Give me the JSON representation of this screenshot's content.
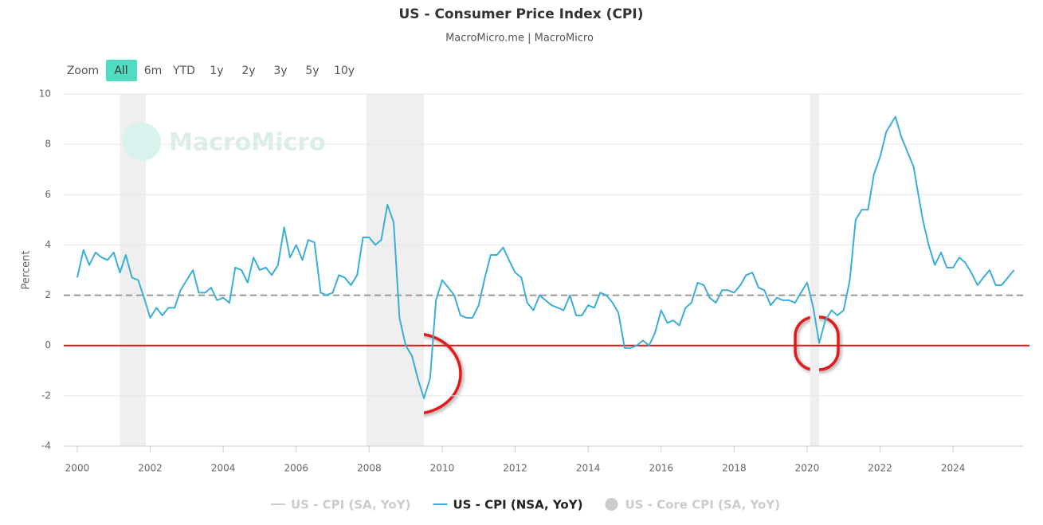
{
  "chart_data": {
    "type": "line",
    "title": "US - Consumer Price Index (CPI)",
    "subtitle": "MacroMicro.me | MacroMicro",
    "watermark": "MacroMicro",
    "y_label": "Percent",
    "range_selector": {
      "label": "Zoom",
      "buttons": [
        "All",
        "6m",
        "YTD",
        "1y",
        "2y",
        "3y",
        "5y",
        "10y"
      ],
      "selected": 0
    },
    "xlim": [
      1999.63,
      2025.94
    ],
    "xticks": [
      2000,
      2002,
      2004,
      2006,
      2008,
      2010,
      2012,
      2014,
      2016,
      2018,
      2020,
      2022,
      2024
    ],
    "ylim": [
      -4,
      10
    ],
    "yticks": [
      -4,
      -2,
      0,
      2,
      4,
      6,
      8,
      10
    ],
    "grid": true,
    "shaded_periods": [
      [
        2001.17,
        2001.88
      ],
      [
        2007.92,
        2009.5
      ],
      [
        2020.08,
        2020.33
      ]
    ],
    "reference_lines": [
      {
        "value": 2,
        "color": "#999999",
        "dashed": true
      },
      {
        "value": 0,
        "color": "#e31a1c",
        "dashed": false
      }
    ],
    "x": [
      2000,
      2000.17,
      2000.33,
      2000.5,
      2000.67,
      2000.83,
      2001,
      2001.17,
      2001.33,
      2001.5,
      2001.67,
      2001.83,
      2002,
      2002.17,
      2002.33,
      2002.5,
      2002.67,
      2002.83,
      2003,
      2003.17,
      2003.33,
      2003.5,
      2003.67,
      2003.83,
      2004,
      2004.17,
      2004.33,
      2004.5,
      2004.67,
      2004.83,
      2005,
      2005.17,
      2005.33,
      2005.5,
      2005.67,
      2005.83,
      2006,
      2006.17,
      2006.33,
      2006.5,
      2006.67,
      2006.83,
      2007,
      2007.17,
      2007.33,
      2007.5,
      2007.67,
      2007.83,
      2008,
      2008.17,
      2008.33,
      2008.5,
      2008.67,
      2008.83,
      2009,
      2009.17,
      2009.33,
      2009.5,
      2009.67,
      2009.83,
      2010,
      2010.17,
      2010.33,
      2010.5,
      2010.67,
      2010.83,
      2011,
      2011.17,
      2011.33,
      2011.5,
      2011.67,
      2011.83,
      2012,
      2012.17,
      2012.33,
      2012.5,
      2012.67,
      2012.83,
      2013,
      2013.17,
      2013.33,
      2013.5,
      2013.67,
      2013.83,
      2014,
      2014.17,
      2014.33,
      2014.5,
      2014.67,
      2014.83,
      2015,
      2015.17,
      2015.33,
      2015.5,
      2015.67,
      2015.83,
      2016,
      2016.17,
      2016.33,
      2016.5,
      2016.67,
      2016.83,
      2017,
      2017.17,
      2017.33,
      2017.5,
      2017.67,
      2017.83,
      2018,
      2018.17,
      2018.33,
      2018.5,
      2018.67,
      2018.83,
      2019,
      2019.17,
      2019.33,
      2019.5,
      2019.67,
      2019.83,
      2020,
      2020.17,
      2020.33,
      2020.5,
      2020.67,
      2020.83,
      2021,
      2021.17,
      2021.33,
      2021.5,
      2021.67,
      2021.83,
      2022,
      2022.17,
      2022.42,
      2022.58,
      2022.75,
      2022.92,
      2023,
      2023.17,
      2023.33,
      2023.5,
      2023.67,
      2023.83,
      2024,
      2024.17,
      2024.33,
      2024.5,
      2024.67,
      2024.83,
      2025,
      2025.17,
      2025.33,
      2025.5,
      2025.67
    ],
    "series": [
      {
        "name": "US - CPI (NSA, YoY)",
        "color": "#3aaed8",
        "values": [
          2.7,
          3.8,
          3.2,
          3.7,
          3.5,
          3.4,
          3.7,
          2.9,
          3.6,
          2.7,
          2.6,
          1.9,
          1.1,
          1.5,
          1.2,
          1.5,
          1.5,
          2.2,
          2.6,
          3.0,
          2.1,
          2.1,
          2.3,
          1.8,
          1.9,
          1.7,
          3.1,
          3.0,
          2.5,
          3.5,
          3.0,
          3.1,
          2.8,
          3.2,
          4.7,
          3.5,
          4.0,
          3.4,
          4.2,
          4.1,
          2.1,
          2.0,
          2.1,
          2.8,
          2.7,
          2.4,
          2.8,
          4.3,
          4.3,
          4.0,
          4.2,
          5.6,
          4.9,
          1.1,
          0.0,
          -0.4,
          -1.3,
          -2.1,
          -1.3,
          1.8,
          2.6,
          2.3,
          2.0,
          1.2,
          1.1,
          1.1,
          1.6,
          2.7,
          3.6,
          3.6,
          3.9,
          3.4,
          2.9,
          2.7,
          1.7,
          1.4,
          2.0,
          1.8,
          1.6,
          1.5,
          1.4,
          2.0,
          1.2,
          1.2,
          1.6,
          1.5,
          2.1,
          2.0,
          1.7,
          1.3,
          -0.1,
          -0.1,
          0.0,
          0.2,
          0.0,
          0.5,
          1.4,
          0.9,
          1.0,
          0.8,
          1.5,
          1.7,
          2.5,
          2.4,
          1.9,
          1.7,
          2.2,
          2.2,
          2.1,
          2.4,
          2.8,
          2.9,
          2.3,
          2.2,
          1.6,
          1.9,
          1.8,
          1.8,
          1.7,
          2.1,
          2.5,
          1.5,
          0.1,
          1.0,
          1.4,
          1.2,
          1.4,
          2.6,
          5.0,
          5.4,
          5.4,
          6.8,
          7.5,
          8.5,
          9.1,
          8.3,
          7.7,
          7.1,
          6.4,
          5.0,
          4.0,
          3.2,
          3.7,
          3.1,
          3.1,
          3.5,
          3.3,
          2.9,
          2.4,
          2.7,
          3.0,
          2.4,
          2.4,
          2.7,
          3.0
        ]
      }
    ],
    "hidden_series": [
      {
        "name": "US - CPI (SA, YoY)",
        "symbol": "line"
      },
      {
        "name": "US - Core CPI (SA, YoY)",
        "symbol": "circle"
      }
    ]
  }
}
